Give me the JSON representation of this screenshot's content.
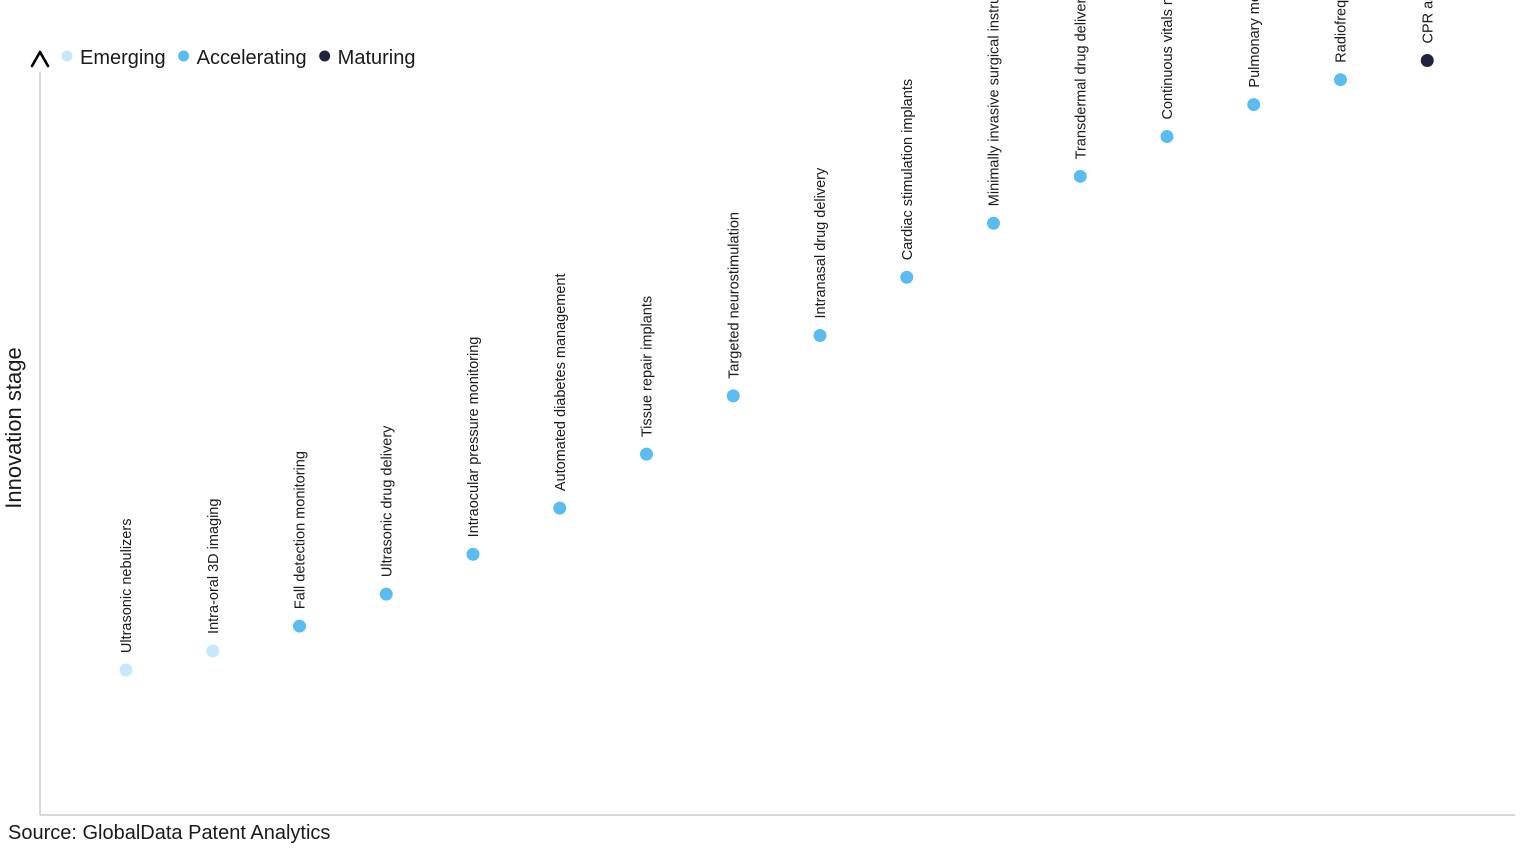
{
  "chart_data": {
    "type": "scatter",
    "title": "",
    "ylabel": "Innovation stage",
    "xlabel": "",
    "ylim": [
      0,
      100
    ],
    "legend": {
      "placement": "top-left",
      "entries": [
        {
          "name": "Emerging",
          "color": "#c6e8fa"
        },
        {
          "name": "Accelerating",
          "color": "#5bbcf2"
        },
        {
          "name": "Maturing",
          "color": "#1f2341"
        }
      ]
    },
    "series": [
      {
        "name": "Emerging",
        "color": "#c6e8fa",
        "points": [
          {
            "label": "Ultrasonic nebulizers",
            "x": 1,
            "y": 13
          },
          {
            "label": "Intra-oral 3D imaging",
            "x": 2,
            "y": 15.7
          }
        ]
      },
      {
        "name": "Accelerating",
        "color": "#5bbcf2",
        "points": [
          {
            "label": "Fall detection monitoring",
            "x": 3,
            "y": 19.2
          },
          {
            "label": "Ultrasonic drug delivery",
            "x": 4,
            "y": 23.7
          },
          {
            "label": "Intraocular pressure monitoring",
            "x": 5,
            "y": 29.3
          },
          {
            "label": "Automated diabetes management",
            "x": 6,
            "y": 35.8
          },
          {
            "label": "Tissue repair implants",
            "x": 7,
            "y": 43.4
          },
          {
            "label": "Targeted neurostimulation",
            "x": 8,
            "y": 51.6
          },
          {
            "label": "Intranasal drug delivery",
            "x": 9,
            "y": 60.1
          },
          {
            "label": "Cardiac stimulation implants",
            "x": 10,
            "y": 68.3
          },
          {
            "label": "Minimally invasive surgical instruments",
            "x": 11,
            "y": 75.9
          },
          {
            "label": "Transdermal drug delivery",
            "x": 12,
            "y": 82.5
          },
          {
            "label": "Continuous vitals monitoring",
            "x": 13,
            "y": 88.1
          },
          {
            "label": "Pulmonary medication delivery",
            "x": 14,
            "y": 92.6
          },
          {
            "label": "Radiofrequency tissue ablation",
            "x": 15,
            "y": 96.1
          }
        ]
      },
      {
        "name": "Maturing",
        "color": "#1f2341",
        "points": [
          {
            "label": "CPR assistance devices",
            "x": 16,
            "y": 98.8
          }
        ]
      }
    ]
  },
  "source": "Source: GlobalData Patent Analytics",
  "colors": {
    "axis": "#bfbfbf",
    "arrow": "#000000",
    "text": "#1a1a1a"
  }
}
